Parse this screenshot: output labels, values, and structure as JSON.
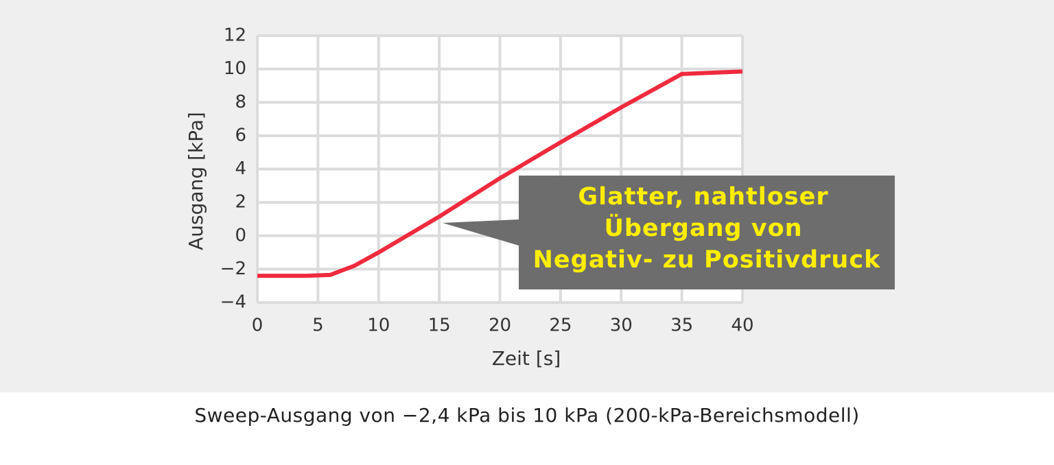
{
  "chart_data": {
    "type": "line",
    "x_label": "Zeit [s]",
    "y_label": "Ausgang [kPa]",
    "caption": "Sweep-Ausgang von −2,4 kPa bis 10 kPa (200-kPa-Bereichsmodell)",
    "annotation": [
      "Glatter, nahtloser",
      "Übergang von",
      "Negativ- zu Positivdruck"
    ],
    "x": [
      0,
      4,
      6,
      8,
      10,
      15,
      20,
      25,
      30,
      35,
      36.5,
      40
    ],
    "series": [
      {
        "name": "Ausgang",
        "color": "#f02a3e",
        "values": [
          -2.4,
          -2.4,
          -2.35,
          -1.8,
          -1.0,
          1.15,
          3.45,
          5.6,
          7.7,
          9.7,
          9.75,
          9.85
        ]
      }
    ],
    "xlim": [
      0,
      40
    ],
    "xticks": [
      0,
      5,
      10,
      15,
      20,
      25,
      30,
      35,
      40
    ],
    "ylim": [
      -4,
      12
    ],
    "yticks": [
      {
        "value": -4,
        "label": "−4"
      },
      {
        "value": -2,
        "label": "−2"
      },
      0,
      2,
      4,
      6,
      8,
      10,
      12
    ],
    "grid": true
  }
}
